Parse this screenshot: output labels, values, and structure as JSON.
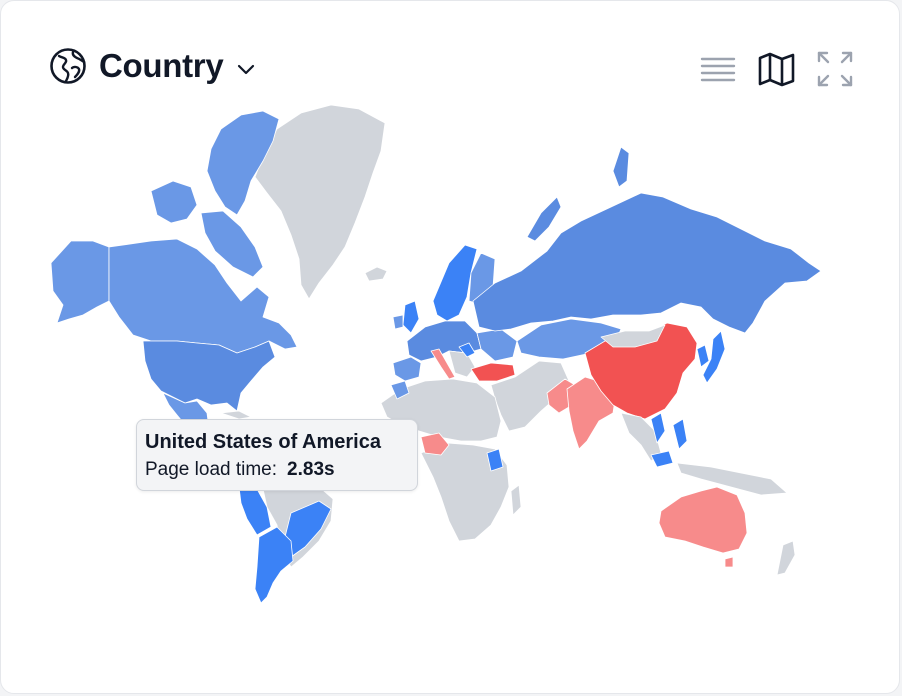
{
  "header": {
    "title": "Country",
    "icon": "globe-icon",
    "dropdown_icon": "chevron-down-icon"
  },
  "toolbar": {
    "list_view_icon": "list-icon",
    "map_view_icon": "map-icon",
    "expand_icon": "expand-icon"
  },
  "tooltip": {
    "country": "United States of America",
    "metric_label": "Page load time:",
    "metric_value": "2.83s"
  },
  "colors": {
    "no_data": "#d1d5db",
    "fast_light": "#6a98e6",
    "fast": "#5a8be0",
    "fast_strong": "#3b82f6",
    "slow_light": "#f78b8b",
    "slow": "#f25252",
    "text": "#111827",
    "icon_muted": "#9ca3af"
  }
}
